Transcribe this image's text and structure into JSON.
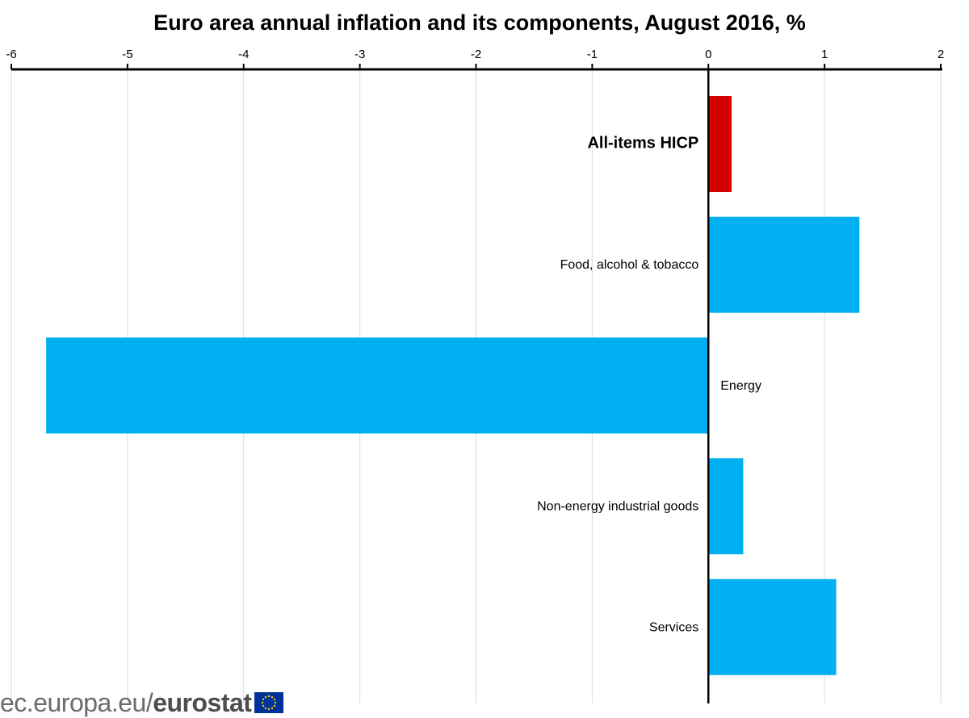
{
  "chart_data": {
    "type": "bar",
    "orientation": "horizontal",
    "title": "Euro area annual inflation and its components, August 2016, %",
    "categories": [
      "All-items HICP",
      "Food, alcohol & tobacco",
      "Energy",
      "Non-energy industrial goods",
      "Services"
    ],
    "values": [
      0.2,
      1.3,
      -5.7,
      0.3,
      1.1
    ],
    "highlight_category": "All-items HICP",
    "xlim": [
      -6,
      2
    ],
    "xticks": [
      -6,
      -5,
      -4,
      -3,
      -2,
      -1,
      0,
      1,
      2
    ],
    "xaxis_position": "top",
    "grid": true,
    "colors": {
      "highlight": "#d50000",
      "default": "#00b0f0",
      "grid": "#d9d9d9",
      "axis": "#000000"
    }
  },
  "footer": {
    "url_text": "ec.europa.eu/",
    "brand": "eurostat",
    "logo_icon": "eu-flag-icon"
  }
}
